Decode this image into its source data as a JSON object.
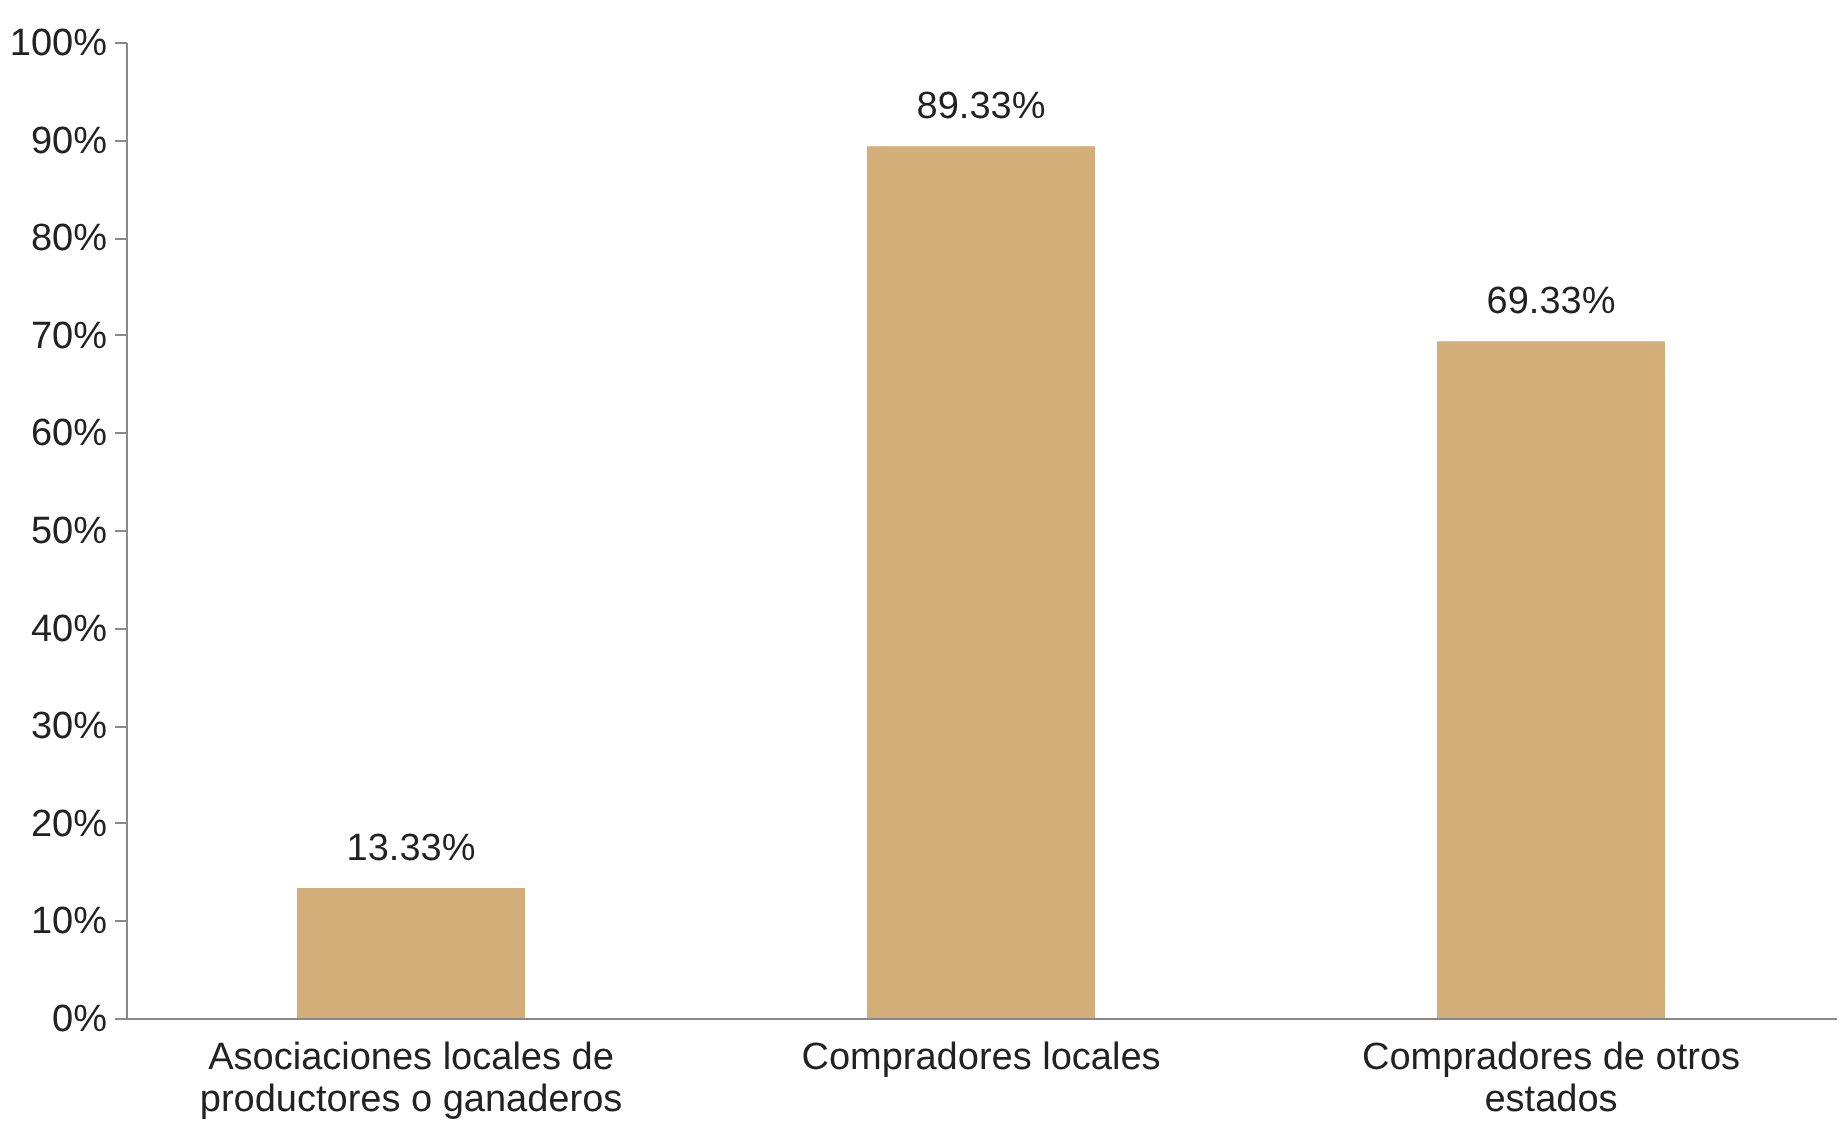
{
  "chart_data": {
    "type": "bar",
    "categories": [
      "Asociaciones locales de productores o ganaderos",
      "Compradores locales",
      "Compradores de otros estados"
    ],
    "values": [
      13.33,
      89.33,
      69.33
    ],
    "color": "#d4ae78",
    "value_labels": [
      "13.33%",
      "89.33%",
      "69.33%"
    ],
    "ylim": [
      0,
      100
    ],
    "yticks": [
      {
        "value": 0,
        "label": "0%"
      },
      {
        "value": 10,
        "label": "10%"
      },
      {
        "value": 20,
        "label": "20%"
      },
      {
        "value": 30,
        "label": "30%"
      },
      {
        "value": 40,
        "label": "40%"
      },
      {
        "value": 50,
        "label": "50%"
      },
      {
        "value": 60,
        "label": "60%"
      },
      {
        "value": 70,
        "label": "70%"
      },
      {
        "value": 80,
        "label": "80%"
      },
      {
        "value": 90,
        "label": "90%"
      },
      {
        "value": 100,
        "label": "100%"
      }
    ],
    "grid": false
  }
}
